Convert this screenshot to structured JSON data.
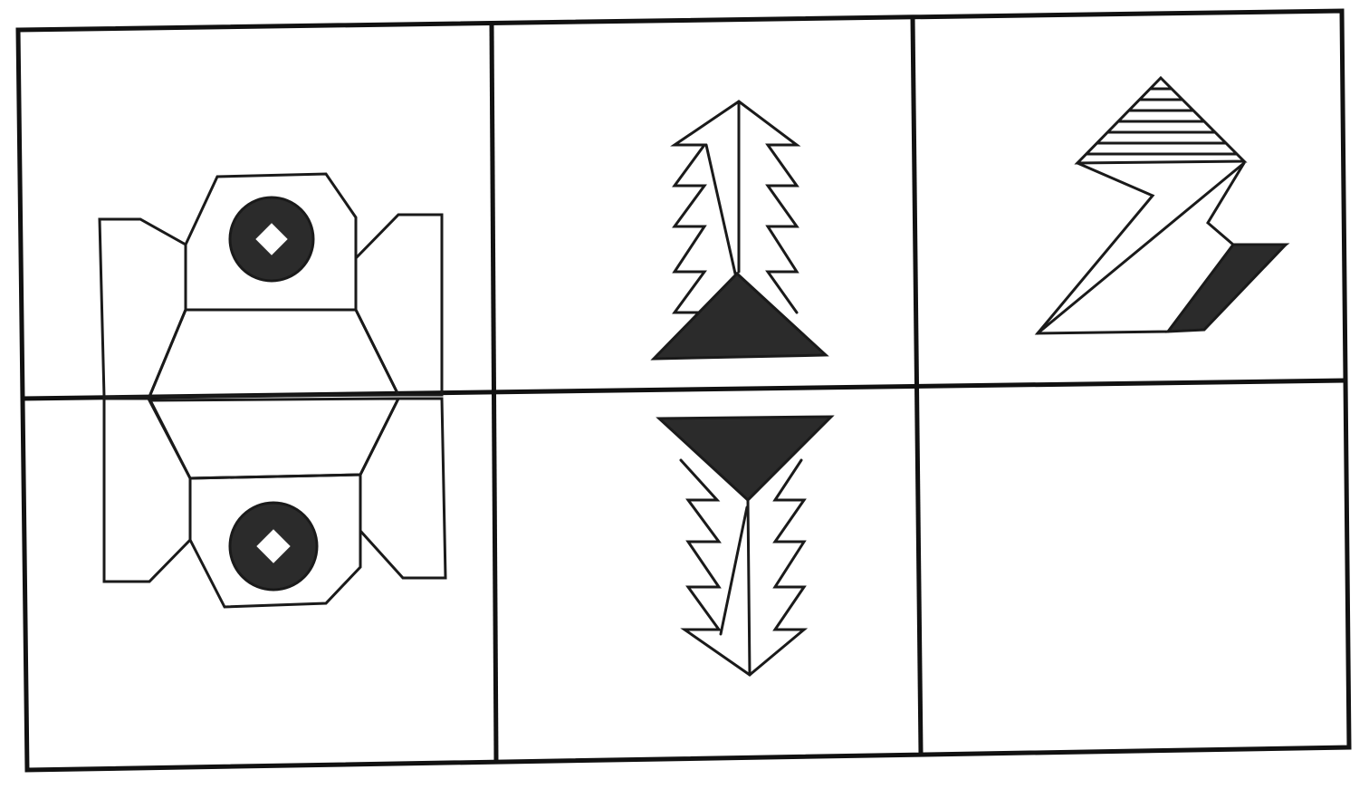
{
  "puzzle": {
    "grid": {
      "rows": 2,
      "cols": 3
    },
    "colors": {
      "ink": "#1a1a1a",
      "fill": "#2b2b2b",
      "background": "#ffffff"
    },
    "cells": [
      {
        "row": 1,
        "col": 1,
        "figure": "robot-top-half-with-eye"
      },
      {
        "row": 1,
        "col": 2,
        "figure": "zigzag-fern-with-solid-triangle-base"
      },
      {
        "row": 1,
        "col": 3,
        "figure": "lightning-bolt-with-striped-triangle-and-solid-parallelogram"
      },
      {
        "row": 2,
        "col": 1,
        "figure": "robot-bottom-half-mirrored"
      },
      {
        "row": 2,
        "col": 2,
        "figure": "zigzag-fern-mirrored-with-solid-triangle-top"
      },
      {
        "row": 2,
        "col": 3,
        "figure": "empty-answer-cell"
      }
    ]
  }
}
